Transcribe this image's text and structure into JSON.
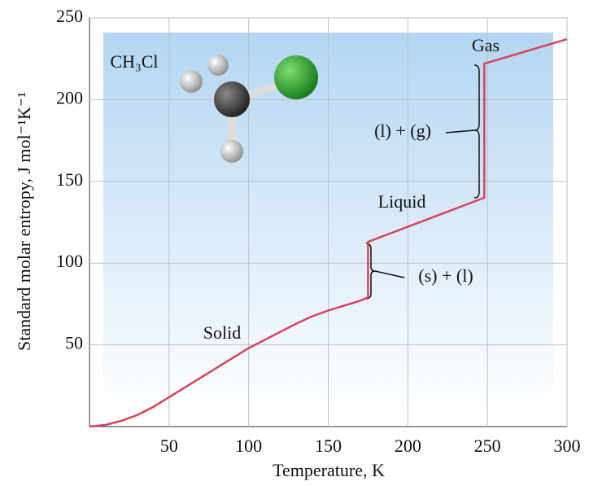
{
  "chart_data": {
    "type": "line",
    "x_label": "Temperature, K",
    "y_label": "Standard molar entropy, J mol⁻¹K⁻¹",
    "x": [
      0,
      10,
      20,
      30,
      40,
      50,
      60,
      70,
      80,
      90,
      100,
      110,
      120,
      130,
      140,
      150,
      160,
      170,
      175,
      175,
      248,
      248,
      300
    ],
    "series": [
      {
        "color": "#d9445a",
        "values": [
          0,
          1,
          3.5,
          7,
          12,
          18,
          24,
          30,
          36,
          42,
          48,
          53,
          58,
          63,
          67.5,
          71,
          74,
          77,
          79,
          113,
          140,
          222,
          237
        ]
      }
    ],
    "xlim": [
      0,
      300
    ],
    "ylim": [
      0,
      250
    ],
    "xticks": [
      50,
      100,
      150,
      200,
      250,
      300
    ],
    "yticks": [
      50,
      100,
      150,
      200,
      250
    ],
    "grid": true,
    "annotations": {
      "molecule": "CH₃Cl",
      "gas": "Gas",
      "liquid_gas": "(l) + (g)",
      "liquid": "Liquid",
      "solid_liquid": "(s) + (l)",
      "solid": "Solid"
    }
  }
}
